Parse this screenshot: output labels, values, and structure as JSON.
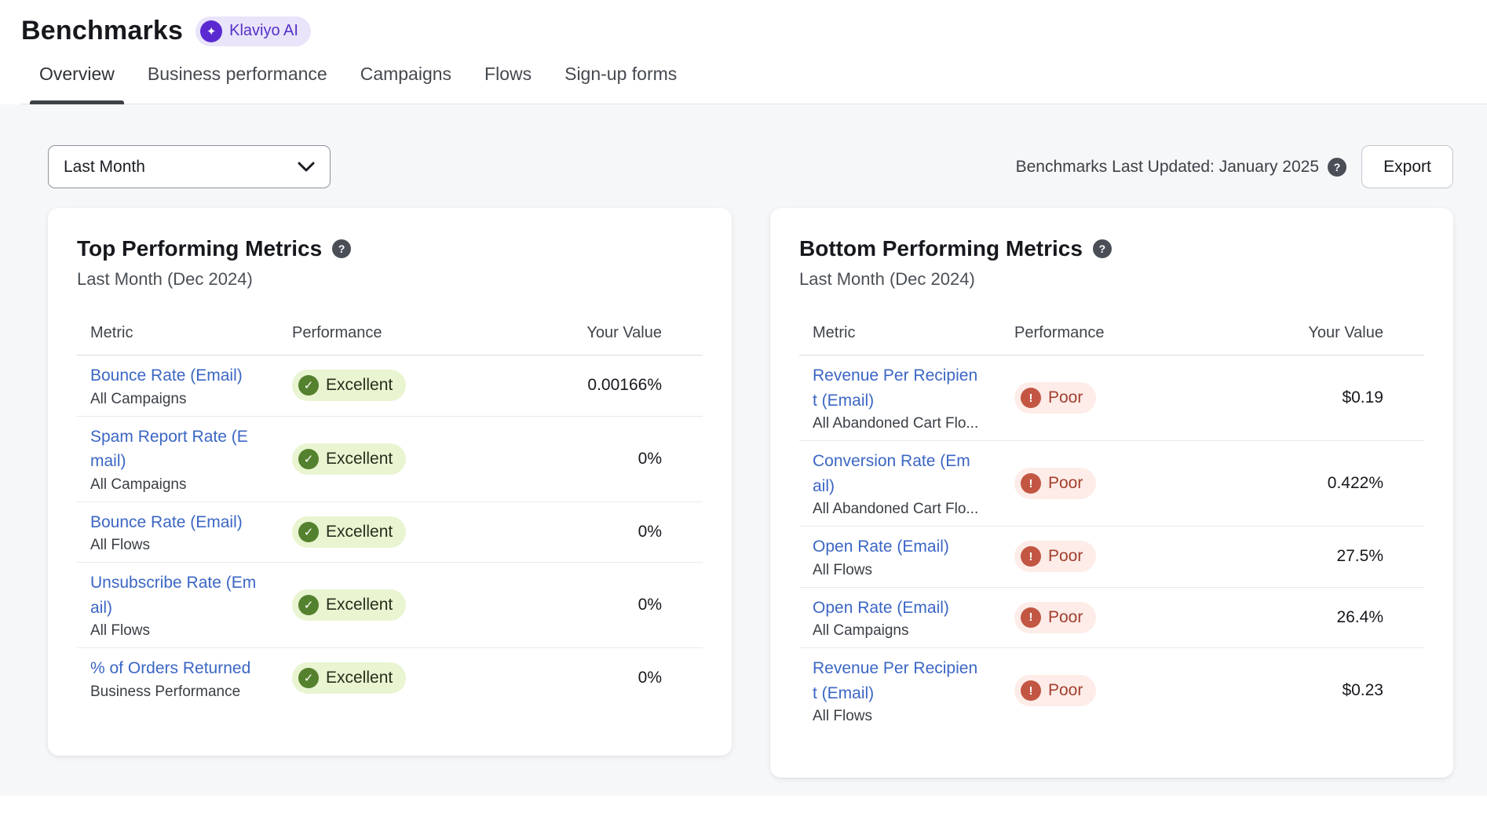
{
  "page": {
    "title": "Benchmarks",
    "ai_badge": {
      "label": "Klaviyo AI"
    },
    "tabs": [
      {
        "label": "Overview",
        "active": true
      },
      {
        "label": "Business performance",
        "active": false
      },
      {
        "label": "Campaigns",
        "active": false
      },
      {
        "label": "Flows",
        "active": false
      },
      {
        "label": "Sign-up forms",
        "active": false
      }
    ]
  },
  "toolbar": {
    "period_selector": {
      "value": "Last Month"
    },
    "last_updated": "Benchmarks Last Updated: January 2025",
    "export_label": "Export"
  },
  "cards": [
    {
      "title": "Top Performing Metrics",
      "subtitle": "Last Month (Dec 2024)",
      "columns": {
        "metric": "Metric",
        "performance": "Performance",
        "value": "Your Value"
      },
      "rows": [
        {
          "metric": "Bounce Rate (Email)",
          "scope": "All Campaigns",
          "status": {
            "label": "Excellent",
            "type": "excellent"
          },
          "value": "0.00166%"
        },
        {
          "metric": "Spam Report Rate (Email)",
          "scope": "All Campaigns",
          "status": {
            "label": "Excellent",
            "type": "excellent"
          },
          "value": "0%"
        },
        {
          "metric": "Bounce Rate (Email)",
          "scope": "All Flows",
          "status": {
            "label": "Excellent",
            "type": "excellent"
          },
          "value": "0%"
        },
        {
          "metric": "Unsubscribe Rate (Email)",
          "scope": "All Flows",
          "status": {
            "label": "Excellent",
            "type": "excellent"
          },
          "value": "0%"
        },
        {
          "metric": "% of Orders Returned",
          "scope": "Business Performance",
          "status": {
            "label": "Excellent",
            "type": "excellent"
          },
          "value": "0%"
        }
      ]
    },
    {
      "title": "Bottom Performing Metrics",
      "subtitle": "Last Month (Dec 2024)",
      "columns": {
        "metric": "Metric",
        "performance": "Performance",
        "value": "Your Value"
      },
      "rows": [
        {
          "metric": "Revenue Per Recipient (Email)",
          "scope": "All Abandoned Cart Flo...",
          "status": {
            "label": "Poor",
            "type": "poor"
          },
          "value": "$0.19"
        },
        {
          "metric": "Conversion Rate (Email)",
          "scope": "All Abandoned Cart Flo...",
          "status": {
            "label": "Poor",
            "type": "poor"
          },
          "value": "0.422%"
        },
        {
          "metric": "Open Rate (Email)",
          "scope": "All Flows",
          "status": {
            "label": "Poor",
            "type": "poor"
          },
          "value": "27.5%"
        },
        {
          "metric": "Open Rate (Email)",
          "scope": "All Campaigns",
          "status": {
            "label": "Poor",
            "type": "poor"
          },
          "value": "26.4%"
        },
        {
          "metric": "Revenue Per Recipient (Email)",
          "scope": "All Flows",
          "status": {
            "label": "Poor",
            "type": "poor"
          },
          "value": "$0.23"
        }
      ]
    }
  ],
  "icons": {
    "check": "✓",
    "exclamation": "!",
    "question": "?",
    "sparkle": "✦"
  },
  "colors": {
    "link_blue": "#3b66c4",
    "brand_purple": "#5a2ad0",
    "ai_chip_bg": "#e9e4fa",
    "excellent_bg": "#e9f4d1",
    "excellent_circle": "#54812d",
    "poor_bg": "#fdece8",
    "poor_circle": "#c25643",
    "poor_text": "#a23f2e",
    "content_bg": "#f6f7f9",
    "tab_underline": "#3e4247"
  }
}
